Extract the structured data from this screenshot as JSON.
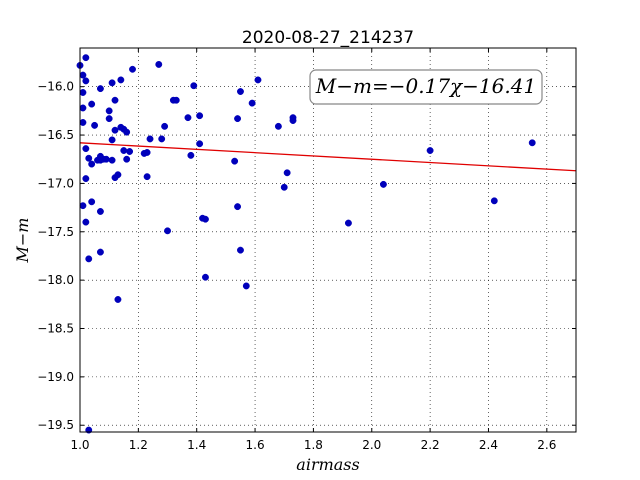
{
  "chart_data": {
    "type": "scatter",
    "title": "2020-08-27_214237",
    "xlabel": "airmass",
    "ylabel": "M−m",
    "xlim": [
      1.0,
      2.7
    ],
    "ylim": [
      -19.57,
      -15.6
    ],
    "x_ticks": [
      1.0,
      1.2,
      1.4,
      1.6,
      1.8,
      2.0,
      2.2,
      2.4,
      2.6
    ],
    "x_tick_labels": [
      "1.0",
      "1.2",
      "1.4",
      "1.6",
      "1.8",
      "2.0",
      "2.2",
      "2.4",
      "2.6"
    ],
    "y_ticks": [
      -16.0,
      -16.5,
      -17.0,
      -17.5,
      -18.0,
      -18.5,
      -19.0,
      -19.5
    ],
    "y_tick_labels": [
      "−16.0",
      "−16.5",
      "−17.0",
      "−17.5",
      "−18.0",
      "−18.5",
      "−19.0",
      "−19.5"
    ],
    "grid": true,
    "annotation": "M−m=−0.17χ−16.41",
    "fit_line": {
      "slope": -0.17,
      "intercept": -16.41,
      "color": "#e00000"
    },
    "marker_color": "#0000bb",
    "points": [
      [
        1.0,
        -15.78
      ],
      [
        1.01,
        -15.88
      ],
      [
        1.01,
        -16.06
      ],
      [
        1.01,
        -16.22
      ],
      [
        1.01,
        -16.37
      ],
      [
        1.01,
        -17.23
      ],
      [
        1.02,
        -15.7
      ],
      [
        1.02,
        -15.94
      ],
      [
        1.02,
        -16.64
      ],
      [
        1.02,
        -16.95
      ],
      [
        1.02,
        -17.4
      ],
      [
        1.03,
        -16.74
      ],
      [
        1.03,
        -17.78
      ],
      [
        1.03,
        -19.55
      ],
      [
        1.04,
        -16.18
      ],
      [
        1.04,
        -16.8
      ],
      [
        1.04,
        -17.19
      ],
      [
        1.05,
        -16.4
      ],
      [
        1.06,
        -16.76
      ],
      [
        1.07,
        -16.02
      ],
      [
        1.07,
        -16.72
      ],
      [
        1.07,
        -16.76
      ],
      [
        1.07,
        -17.29
      ],
      [
        1.07,
        -17.71
      ],
      [
        1.08,
        -16.75
      ],
      [
        1.09,
        -16.75
      ],
      [
        1.1,
        -16.25
      ],
      [
        1.1,
        -16.33
      ],
      [
        1.11,
        -15.96
      ],
      [
        1.11,
        -16.55
      ],
      [
        1.11,
        -16.76
      ],
      [
        1.12,
        -16.94
      ],
      [
        1.12,
        -16.14
      ],
      [
        1.12,
        -16.45
      ],
      [
        1.13,
        -16.91
      ],
      [
        1.13,
        -18.2
      ],
      [
        1.14,
        -15.93
      ],
      [
        1.14,
        -16.42
      ],
      [
        1.15,
        -16.44
      ],
      [
        1.15,
        -16.66
      ],
      [
        1.16,
        -16.47
      ],
      [
        1.16,
        -16.75
      ],
      [
        1.17,
        -16.67
      ],
      [
        1.18,
        -15.82
      ],
      [
        1.22,
        -16.69
      ],
      [
        1.23,
        -16.68
      ],
      [
        1.23,
        -16.93
      ],
      [
        1.24,
        -16.54
      ],
      [
        1.27,
        -15.77
      ],
      [
        1.28,
        -16.54
      ],
      [
        1.29,
        -16.41
      ],
      [
        1.3,
        -17.49
      ],
      [
        1.32,
        -16.14
      ],
      [
        1.33,
        -16.14
      ],
      [
        1.37,
        -16.32
      ],
      [
        1.38,
        -16.71
      ],
      [
        1.39,
        -15.99
      ],
      [
        1.41,
        -16.3
      ],
      [
        1.41,
        -16.59
      ],
      [
        1.42,
        -17.36
      ],
      [
        1.43,
        -17.37
      ],
      [
        1.43,
        -17.97
      ],
      [
        1.53,
        -16.77
      ],
      [
        1.54,
        -17.24
      ],
      [
        1.54,
        -16.33
      ],
      [
        1.55,
        -17.69
      ],
      [
        1.55,
        -16.05
      ],
      [
        1.57,
        -18.06
      ],
      [
        1.59,
        -16.17
      ],
      [
        1.61,
        -15.93
      ],
      [
        1.68,
        -16.41
      ],
      [
        1.7,
        -17.04
      ],
      [
        1.71,
        -16.89
      ],
      [
        1.73,
        -16.35
      ],
      [
        1.73,
        -16.32
      ],
      [
        1.92,
        -17.41
      ],
      [
        2.04,
        -17.01
      ],
      [
        2.2,
        -16.66
      ],
      [
        2.42,
        -17.18
      ],
      [
        2.55,
        -16.58
      ]
    ]
  }
}
